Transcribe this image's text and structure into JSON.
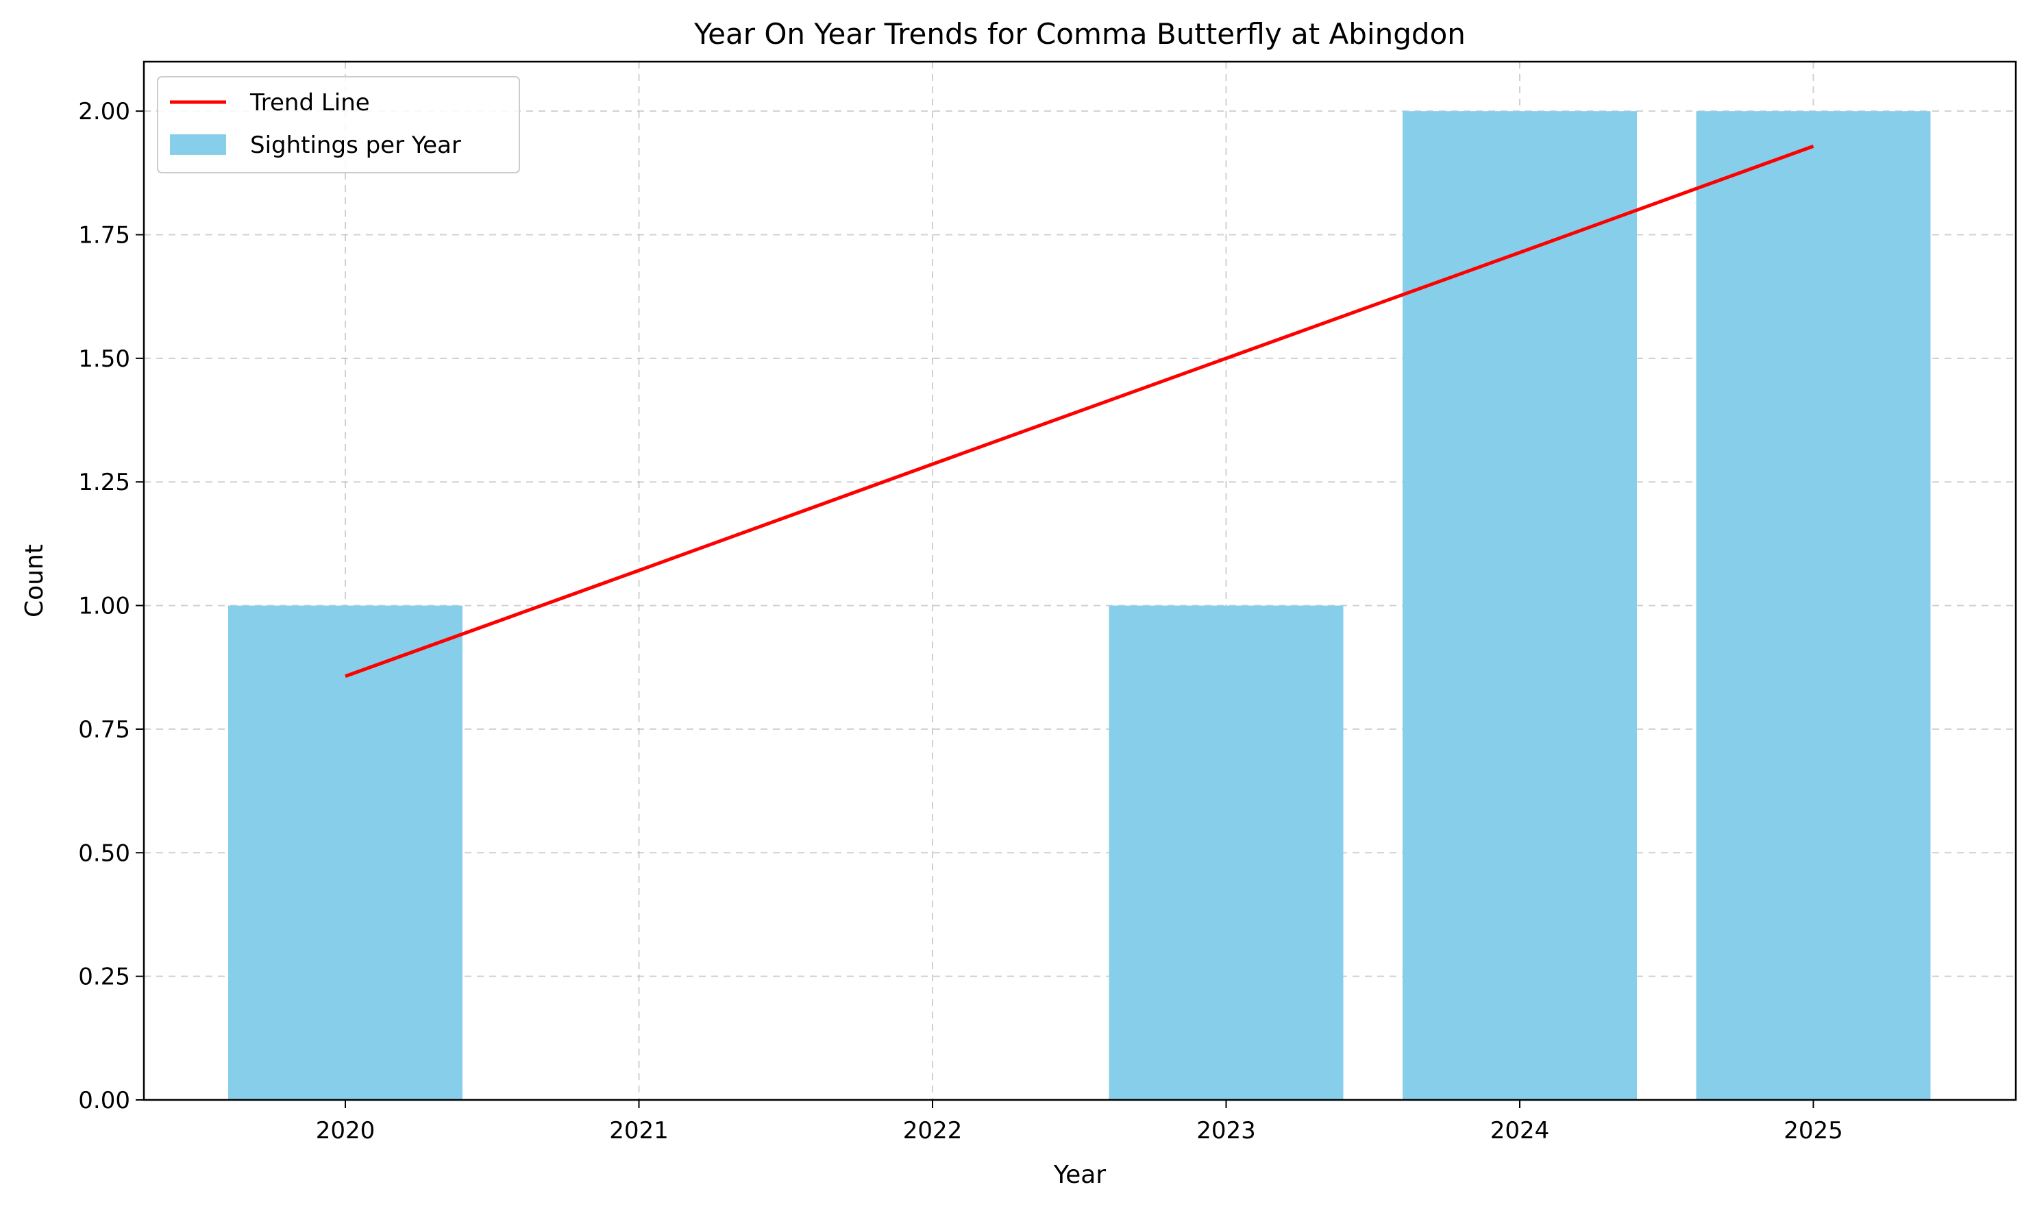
{
  "chart_data": {
    "type": "bar",
    "title": "Year On Year Trends for Comma Butterfly at Abingdon",
    "xlabel": "Year",
    "ylabel": "Count",
    "categories": [
      "2020",
      "2021",
      "2022",
      "2023",
      "2024",
      "2025"
    ],
    "ylim": [
      0,
      2.1
    ],
    "yticks": [
      "0.00",
      "0.25",
      "0.50",
      "0.75",
      "1.00",
      "1.25",
      "1.50",
      "1.75",
      "2.00"
    ],
    "grid": true,
    "legend_position": "top-left",
    "series": [
      {
        "name": "Sightings per Year",
        "type": "bar",
        "values": [
          1,
          0,
          0,
          1,
          2,
          2
        ],
        "color": "#87CEEB"
      },
      {
        "name": "Trend Line",
        "type": "line",
        "values": [
          0.857,
          1.071,
          1.286,
          1.5,
          1.714,
          1.929
        ],
        "color": "#FF0000"
      }
    ]
  }
}
